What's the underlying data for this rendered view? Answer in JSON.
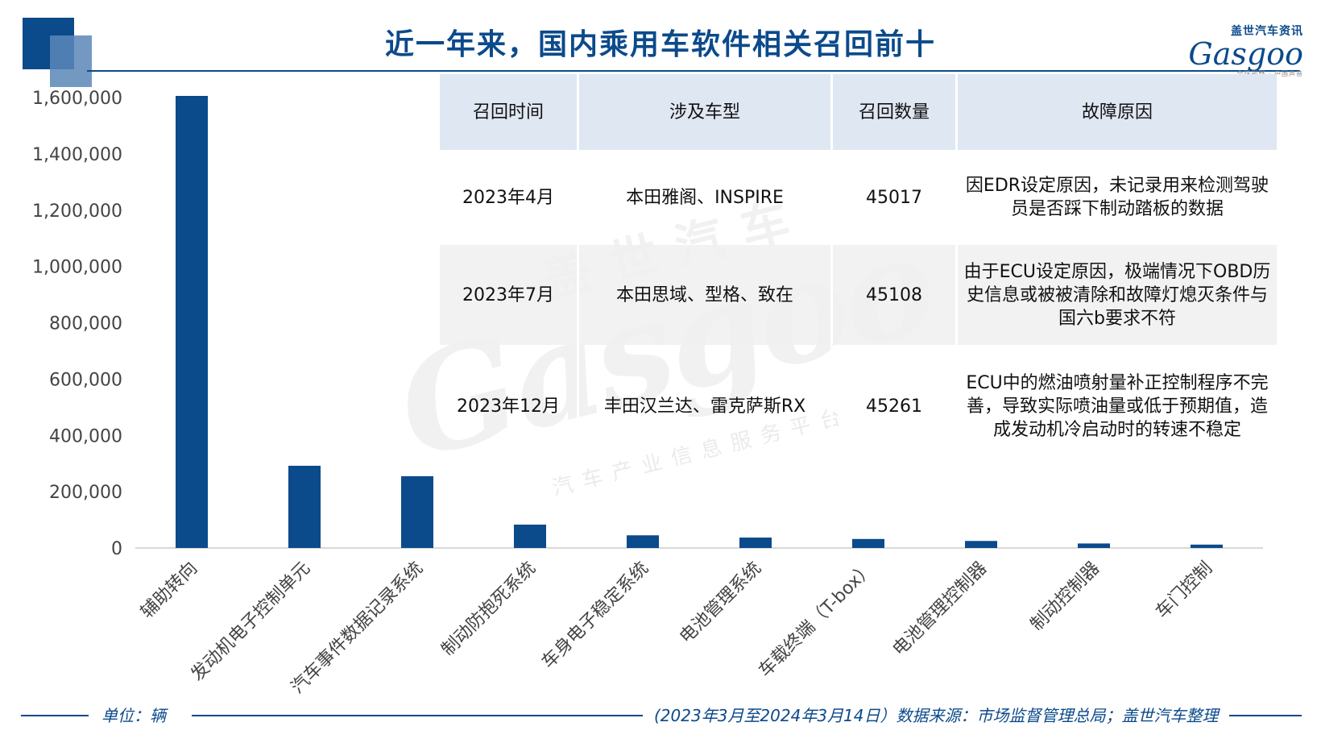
{
  "title": "近一年来，国内乘用车软件相关召回前十",
  "logo": {
    "top_text": "盖世汽车资讯",
    "main_text": "Gasgoo",
    "sub_text": "全球视野 · 中国声音"
  },
  "watermark": {
    "top_text": "盖世汽车",
    "main_text": "Gasgoo",
    "sub_text": "汽车产业信息服务平台"
  },
  "colors": {
    "accent": "#0b4a8b",
    "bar": "#0b4a8b",
    "header_bg": "#dfe7f3",
    "brand_red": "#cc1f2f"
  },
  "chart_data": {
    "type": "bar",
    "categories": [
      "辅助转向",
      "发动机电子控制单元",
      "汽车事件数据记录系统",
      "制动防抱死系统",
      "车身电子稳定系统",
      "电池管理系统",
      "车载终端（T-box）",
      "电池管理控制器",
      "制动控制器",
      "车门控制"
    ],
    "values": [
      1610000,
      292000,
      255000,
      83000,
      45000,
      37000,
      32000,
      25000,
      16000,
      12000
    ],
    "ylim": [
      0,
      1600000
    ],
    "yticks": [
      0,
      200000,
      400000,
      600000,
      800000,
      1000000,
      1200000,
      1400000,
      1600000
    ],
    "ytick_labels": [
      "0",
      "200,000",
      "400,000",
      "600,000",
      "800,000",
      "1,000,000",
      "1,200,000",
      "1,400,000",
      "1,600,000"
    ],
    "grid": false,
    "unit": "单位：辆"
  },
  "table": {
    "headers": [
      "召回时间",
      "涉及车型",
      "召回数量",
      "故障原因"
    ],
    "rows": [
      [
        "2023年4月",
        "本田雅阁、INSPIRE",
        "45017",
        "因EDR设定原因，未记录用来检测驾驶员是否踩下制动踏板的数据"
      ],
      [
        "2023年7月",
        "本田思域、型格、致在",
        "45108",
        "由于ECU设定原因，极端情况下OBD历史信息或被被清除和故障灯熄灭条件与国六b要求不符"
      ],
      [
        "2023年12月",
        "丰田汉兰达、雷克萨斯RX",
        "45261",
        "ECU中的燃油喷射量补正控制程序不完善，导致实际喷油量或低于预期值，造成发动机冷启动时的转速不稳定"
      ]
    ]
  },
  "footer": {
    "unit": "单位：辆",
    "source": "(2023年3月至2024年3月14日）数据来源：市场监督管理总局；盖世汽车整理"
  }
}
